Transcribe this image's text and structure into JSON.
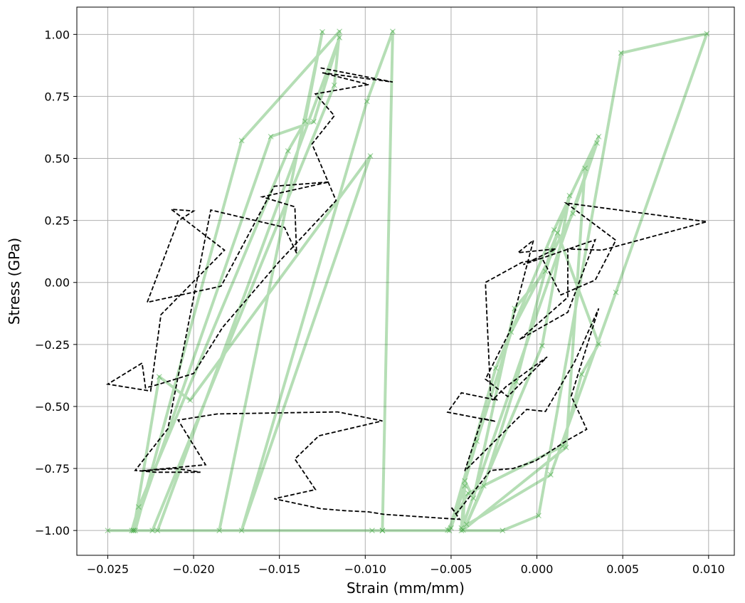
{
  "chart_data": {
    "type": "line",
    "title": "",
    "xlabel": "Strain (mm/mm)",
    "ylabel": "Stress (GPa)",
    "xlim": [
      -0.0268,
      0.0115
    ],
    "ylim": [
      -1.1,
      1.11
    ],
    "grid": true,
    "xticks": [
      -0.025,
      -0.02,
      -0.015,
      -0.01,
      -0.005,
      0.0,
      0.005,
      0.01
    ],
    "xtick_labels": [
      "−0.025",
      "−0.020",
      "−0.015",
      "−0.010",
      "−0.005",
      "0.000",
      "0.005",
      "0.010"
    ],
    "yticks": [
      1.0,
      0.75,
      0.5,
      0.25,
      0.0,
      -0.25,
      -0.5,
      -0.75,
      -1.0
    ],
    "ytick_labels": [
      "1.00",
      "0.75",
      "0.50",
      "0.25",
      "0.00",
      "−0.25",
      "−0.50",
      "−0.75",
      "−1.00"
    ],
    "series": [
      {
        "style": "solid-x-markers",
        "color": "#2ca02c",
        "points": [
          [
            -0.025,
            -1.0
          ],
          [
            -0.0224,
            -1.0
          ],
          [
            -0.0118,
            0.795
          ],
          [
            -0.0115,
            1.012
          ],
          [
            -0.0172,
            0.572
          ],
          [
            -0.0234,
            -1.0
          ],
          [
            -0.0221,
            -1.0
          ],
          [
            -0.0115,
            0.987
          ],
          [
            -0.013,
            0.648
          ],
          [
            -0.0155,
            0.588
          ],
          [
            -0.0235,
            -1.0
          ],
          [
            -0.0185,
            -1.0
          ],
          [
            -0.0125,
            1.01
          ],
          [
            -0.0135,
            0.65
          ],
          [
            -0.0145,
            0.53
          ],
          [
            -0.0232,
            -0.905
          ],
          [
            -0.0236,
            -1.0
          ],
          [
            -0.0096,
            -1.0
          ],
          [
            -0.009,
            -1.0
          ],
          [
            -0.0084,
            1.012
          ],
          [
            -0.0099,
            0.73
          ],
          [
            -0.0172,
            -1.0
          ],
          [
            -0.0097,
            0.51
          ],
          [
            -0.0202,
            -0.475
          ],
          [
            -0.022,
            -0.38
          ],
          [
            -0.0235,
            -1.0
          ],
          [
            -0.009,
            -1.0
          ],
          [
            -0.0051,
            -1.0
          ],
          [
            -0.0024,
            -0.345
          ],
          [
            0.001,
            0.212
          ],
          [
            0.0036,
            0.588
          ],
          [
            -0.0044,
            -1.0
          ],
          [
            -0.002,
            -1.0
          ],
          [
            0.0001,
            -0.94
          ],
          [
            0.0049,
            0.925
          ],
          [
            0.0099,
            1.003
          ],
          [
            0.0046,
            -0.04
          ],
          [
            0.0008,
            -0.775
          ],
          [
            -0.0044,
            -0.99
          ],
          [
            -0.0042,
            -0.82
          ],
          [
            -0.005,
            -0.99
          ],
          [
            -0.0035,
            -0.64
          ],
          [
            -0.0015,
            -0.2
          ],
          [
            0.0021,
            0.278
          ],
          [
            0.0035,
            0.562
          ],
          [
            0.0028,
            0.46
          ],
          [
            0.0017,
            -0.665
          ],
          [
            -0.0043,
            -0.998
          ],
          [
            -0.0042,
            -0.8
          ],
          [
            -0.0037,
            -0.87
          ],
          [
            -0.0013,
            -0.105
          ],
          [
            0.0005,
            0.045
          ],
          [
            0.0019,
            0.35
          ],
          [
            0.0003,
            -0.255
          ],
          [
            -0.0041,
            -0.975
          ],
          [
            -0.0031,
            -0.82
          ],
          [
            -0.0012,
            -0.4
          ],
          [
            0.0008,
            0.131
          ],
          [
            0.0012,
            0.2
          ],
          [
            0.0036,
            -0.248
          ],
          [
            0.0026,
            -0.37
          ],
          [
            0.0015,
            -0.66
          ],
          [
            -0.004,
            -0.85
          ],
          [
            -0.0052,
            -0.998
          ]
        ]
      },
      {
        "style": "dashed",
        "color": "#000000",
        "points": [
          [
            -0.0126,
            0.865
          ],
          [
            -0.0084,
            0.808
          ],
          [
            -0.0125,
            0.845
          ],
          [
            -0.0098,
            0.798
          ],
          [
            -0.0129,
            0.76
          ],
          [
            -0.0118,
            0.672
          ],
          [
            -0.0131,
            0.558
          ],
          [
            -0.0117,
            0.33
          ],
          [
            -0.015,
            0.085
          ],
          [
            -0.0183,
            -0.18
          ],
          [
            -0.02,
            -0.367
          ],
          [
            -0.022,
            -0.41
          ],
          [
            -0.0228,
            -0.425
          ],
          [
            -0.023,
            -0.325
          ],
          [
            -0.025,
            -0.41
          ],
          [
            -0.0225,
            -0.438
          ],
          [
            -0.0219,
            -0.13
          ],
          [
            -0.0182,
            0.13
          ],
          [
            -0.0213,
            0.295
          ],
          [
            -0.02,
            0.288
          ],
          [
            -0.0209,
            0.248
          ],
          [
            -0.0227,
            -0.08
          ],
          [
            -0.0184,
            -0.015
          ],
          [
            -0.0153,
            0.388
          ],
          [
            -0.0121,
            0.405
          ],
          [
            -0.016,
            0.345
          ],
          [
            -0.0141,
            0.305
          ],
          [
            -0.014,
            0.118
          ],
          [
            -0.0147,
            0.222
          ],
          [
            -0.019,
            0.292
          ],
          [
            -0.0215,
            -0.59
          ],
          [
            -0.0219,
            -0.625
          ],
          [
            -0.0234,
            -0.758
          ],
          [
            -0.0222,
            -0.765
          ],
          [
            -0.0196,
            -0.765
          ],
          [
            -0.021,
            -0.75
          ],
          [
            -0.0231,
            -0.76
          ],
          [
            -0.0193,
            -0.735
          ],
          [
            -0.0209,
            -0.555
          ],
          [
            -0.0186,
            -0.53
          ],
          [
            -0.0116,
            -0.522
          ],
          [
            -0.009,
            -0.558
          ],
          [
            -0.0127,
            -0.618
          ],
          [
            -0.0141,
            -0.712
          ],
          [
            -0.0129,
            -0.835
          ],
          [
            -0.0153,
            -0.872
          ],
          [
            -0.0126,
            -0.912
          ],
          [
            -0.0112,
            -0.92
          ],
          [
            -0.0098,
            -0.925
          ],
          [
            -0.0089,
            -0.935
          ],
          [
            -0.0067,
            -0.945
          ],
          [
            -0.0045,
            -0.955
          ],
          [
            -0.005,
            -0.905
          ],
          [
            -0.0047,
            -0.932
          ],
          [
            -0.0027,
            -0.758
          ],
          [
            -0.0014,
            -0.75
          ],
          [
            -0.0001,
            -0.72
          ],
          [
            0.0018,
            -0.635
          ],
          [
            0.0029,
            -0.592
          ],
          [
            0.002,
            -0.458
          ],
          [
            0.0036,
            -0.105
          ],
          [
            0.0022,
            -0.32
          ],
          [
            0.0005,
            -0.52
          ],
          [
            -0.0006,
            -0.512
          ],
          [
            -0.0042,
            -0.76
          ],
          [
            -0.0032,
            -0.548
          ],
          [
            -0.0024,
            -0.56
          ],
          [
            -0.0052,
            -0.523
          ],
          [
            -0.0044,
            -0.445
          ],
          [
            -0.0023,
            -0.475
          ],
          [
            -0.0027,
            -0.455
          ],
          [
            -0.003,
            0.0
          ],
          [
            -0.0009,
            0.08
          ],
          [
            0.0003,
            0.098
          ],
          [
            0.0014,
            -0.05
          ],
          [
            0.0034,
            0.01
          ],
          [
            0.0046,
            0.17
          ],
          [
            0.0017,
            0.32
          ],
          [
            0.0099,
            0.245
          ],
          [
            0.0038,
            0.13
          ],
          [
            0.0018,
            0.135
          ],
          [
            0.0018,
            -0.06
          ],
          [
            -0.001,
            -0.23
          ],
          [
            0.0018,
            -0.12
          ],
          [
            0.0034,
            0.172
          ],
          [
            -0.0008,
            0.072
          ],
          [
            0.0011,
            0.135
          ],
          [
            -0.0011,
            0.12
          ],
          [
            -0.0002,
            0.17
          ],
          [
            -0.0016,
            -0.2
          ],
          [
            -0.003,
            -0.39
          ],
          [
            -0.0017,
            -0.46
          ],
          [
            0.0006,
            -0.3
          ],
          [
            -0.0018,
            -0.42
          ],
          [
            -0.0026,
            -0.475
          ]
        ]
      }
    ]
  }
}
